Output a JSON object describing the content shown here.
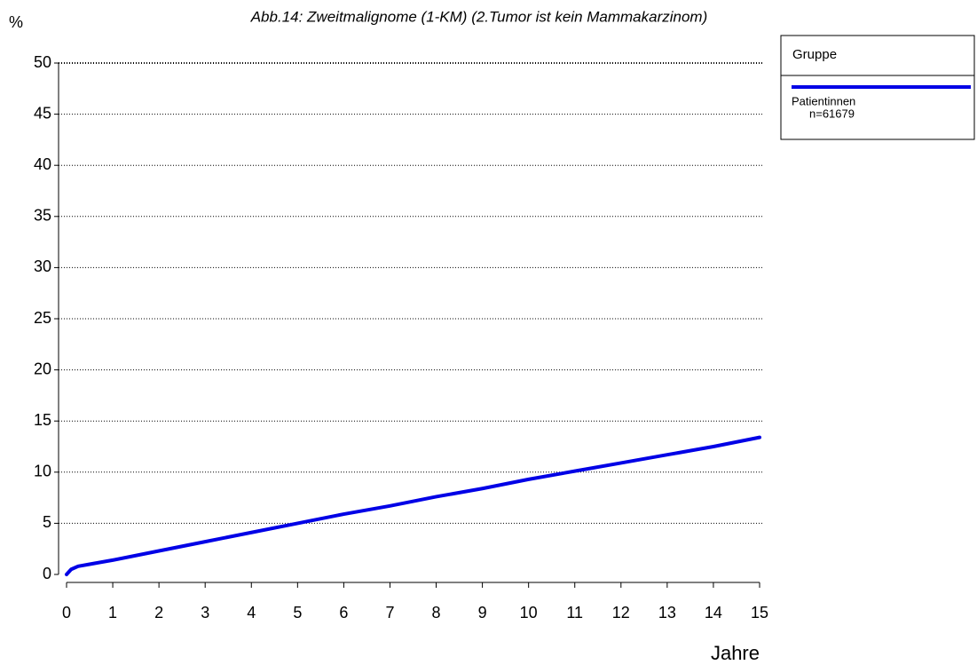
{
  "chart_data": {
    "type": "line",
    "title": "Abb.14: Zweitmalignome (1-KM) (2.Tumor ist kein Mammakarzinom)",
    "y_label": "%",
    "x_label": "Jahre",
    "legend_title": "Gruppe",
    "legend_position": "right",
    "x": [
      0,
      0.1,
      0.25,
      0.5,
      1,
      2,
      3,
      4,
      5,
      6,
      7,
      8,
      9,
      10,
      11,
      12,
      13,
      14,
      15
    ],
    "series": [
      {
        "name": "Patientinnen",
        "note": "n=61679",
        "color": "#0000e6",
        "values": [
          0,
          0.5,
          0.8,
          1.0,
          1.4,
          2.3,
          3.2,
          4.1,
          5.0,
          5.9,
          6.7,
          7.6,
          8.4,
          9.3,
          10.1,
          10.9,
          11.7,
          12.5,
          13.4
        ]
      }
    ],
    "xlim": [
      0,
      15
    ],
    "xticks": [
      0,
      1,
      2,
      3,
      4,
      5,
      6,
      7,
      8,
      9,
      10,
      11,
      12,
      13,
      14,
      15
    ],
    "ylim": [
      0,
      50
    ],
    "yticks": [
      0,
      5,
      10,
      15,
      20,
      25,
      30,
      35,
      40,
      45,
      50
    ],
    "grid": true
  }
}
